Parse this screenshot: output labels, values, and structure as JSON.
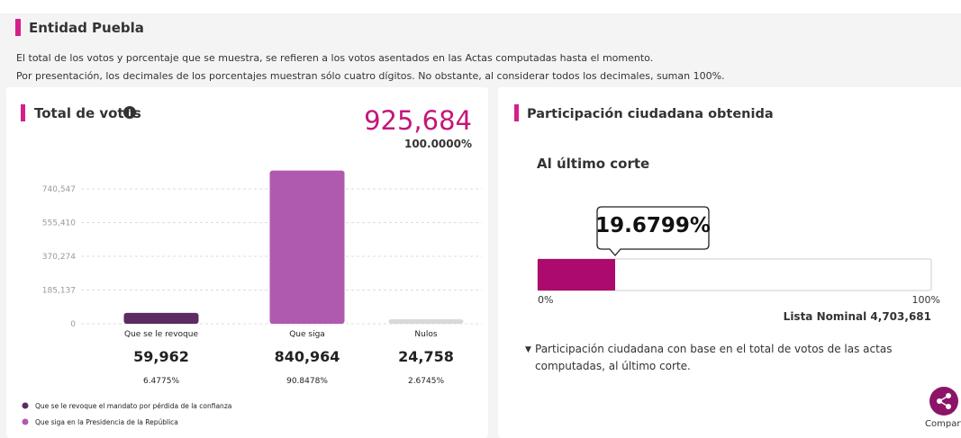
{
  "header": {
    "title": "Entidad Puebla",
    "notes": [
      "El total de los votos y porcentaje que se muestra, se refieren a los votos asentados en las Actas computadas hasta el momento.",
      "Por presentación, los decimales de los porcentajes muestran sólo cuatro dígitos. No obstante, al considerar todos los decimales, suman 100%."
    ]
  },
  "total_votes": {
    "title": "Total de votos",
    "total": "925,684",
    "total_percent": "100.0000%",
    "chart": {
      "type": "bar",
      "categories": [
        "Que se le revoque",
        "Que siga",
        "Nulos"
      ],
      "values": [
        59962,
        840964,
        24758
      ],
      "value_labels": [
        "59,962",
        "840,964",
        "24,758"
      ],
      "percent_labels": [
        "6.4775%",
        "90.8478%",
        "2.6745%"
      ],
      "colors": [
        "#5e2b63",
        "#b05aaf",
        "#d9d9d9"
      ],
      "ylim": [
        0,
        864000
      ],
      "yticks": [
        0,
        {
          "value": 185137,
          "label": "185,137"
        },
        {
          "value": 370274,
          "label": "370,274"
        },
        {
          "value": 555410,
          "label": "555,410"
        },
        {
          "value": 740547,
          "label": "740,547"
        }
      ],
      "grid": true
    },
    "legend": [
      {
        "label": "Que se le revoque el mandato por pérdida de la confianza",
        "color": "#5e2b63"
      },
      {
        "label": "Que siga en la Presidencia de la República",
        "color": "#b05aaf"
      }
    ]
  },
  "participation": {
    "title": "Participación ciudadana obtenida",
    "subtitle": "Al último corte",
    "value": 19.6799,
    "label": "19.6799%",
    "color": "#ad0a6d",
    "xlim": [
      0,
      100
    ],
    "xticks": [
      {
        "value": 0,
        "label": "0%"
      },
      {
        "value": 100,
        "label": "100%"
      }
    ],
    "nominal_list": "Lista Nominal 4,703,681",
    "note": "Participación ciudadana con base en el total de votos de las actas computadas, al último corte."
  },
  "share": {
    "label": "Comparti"
  }
}
